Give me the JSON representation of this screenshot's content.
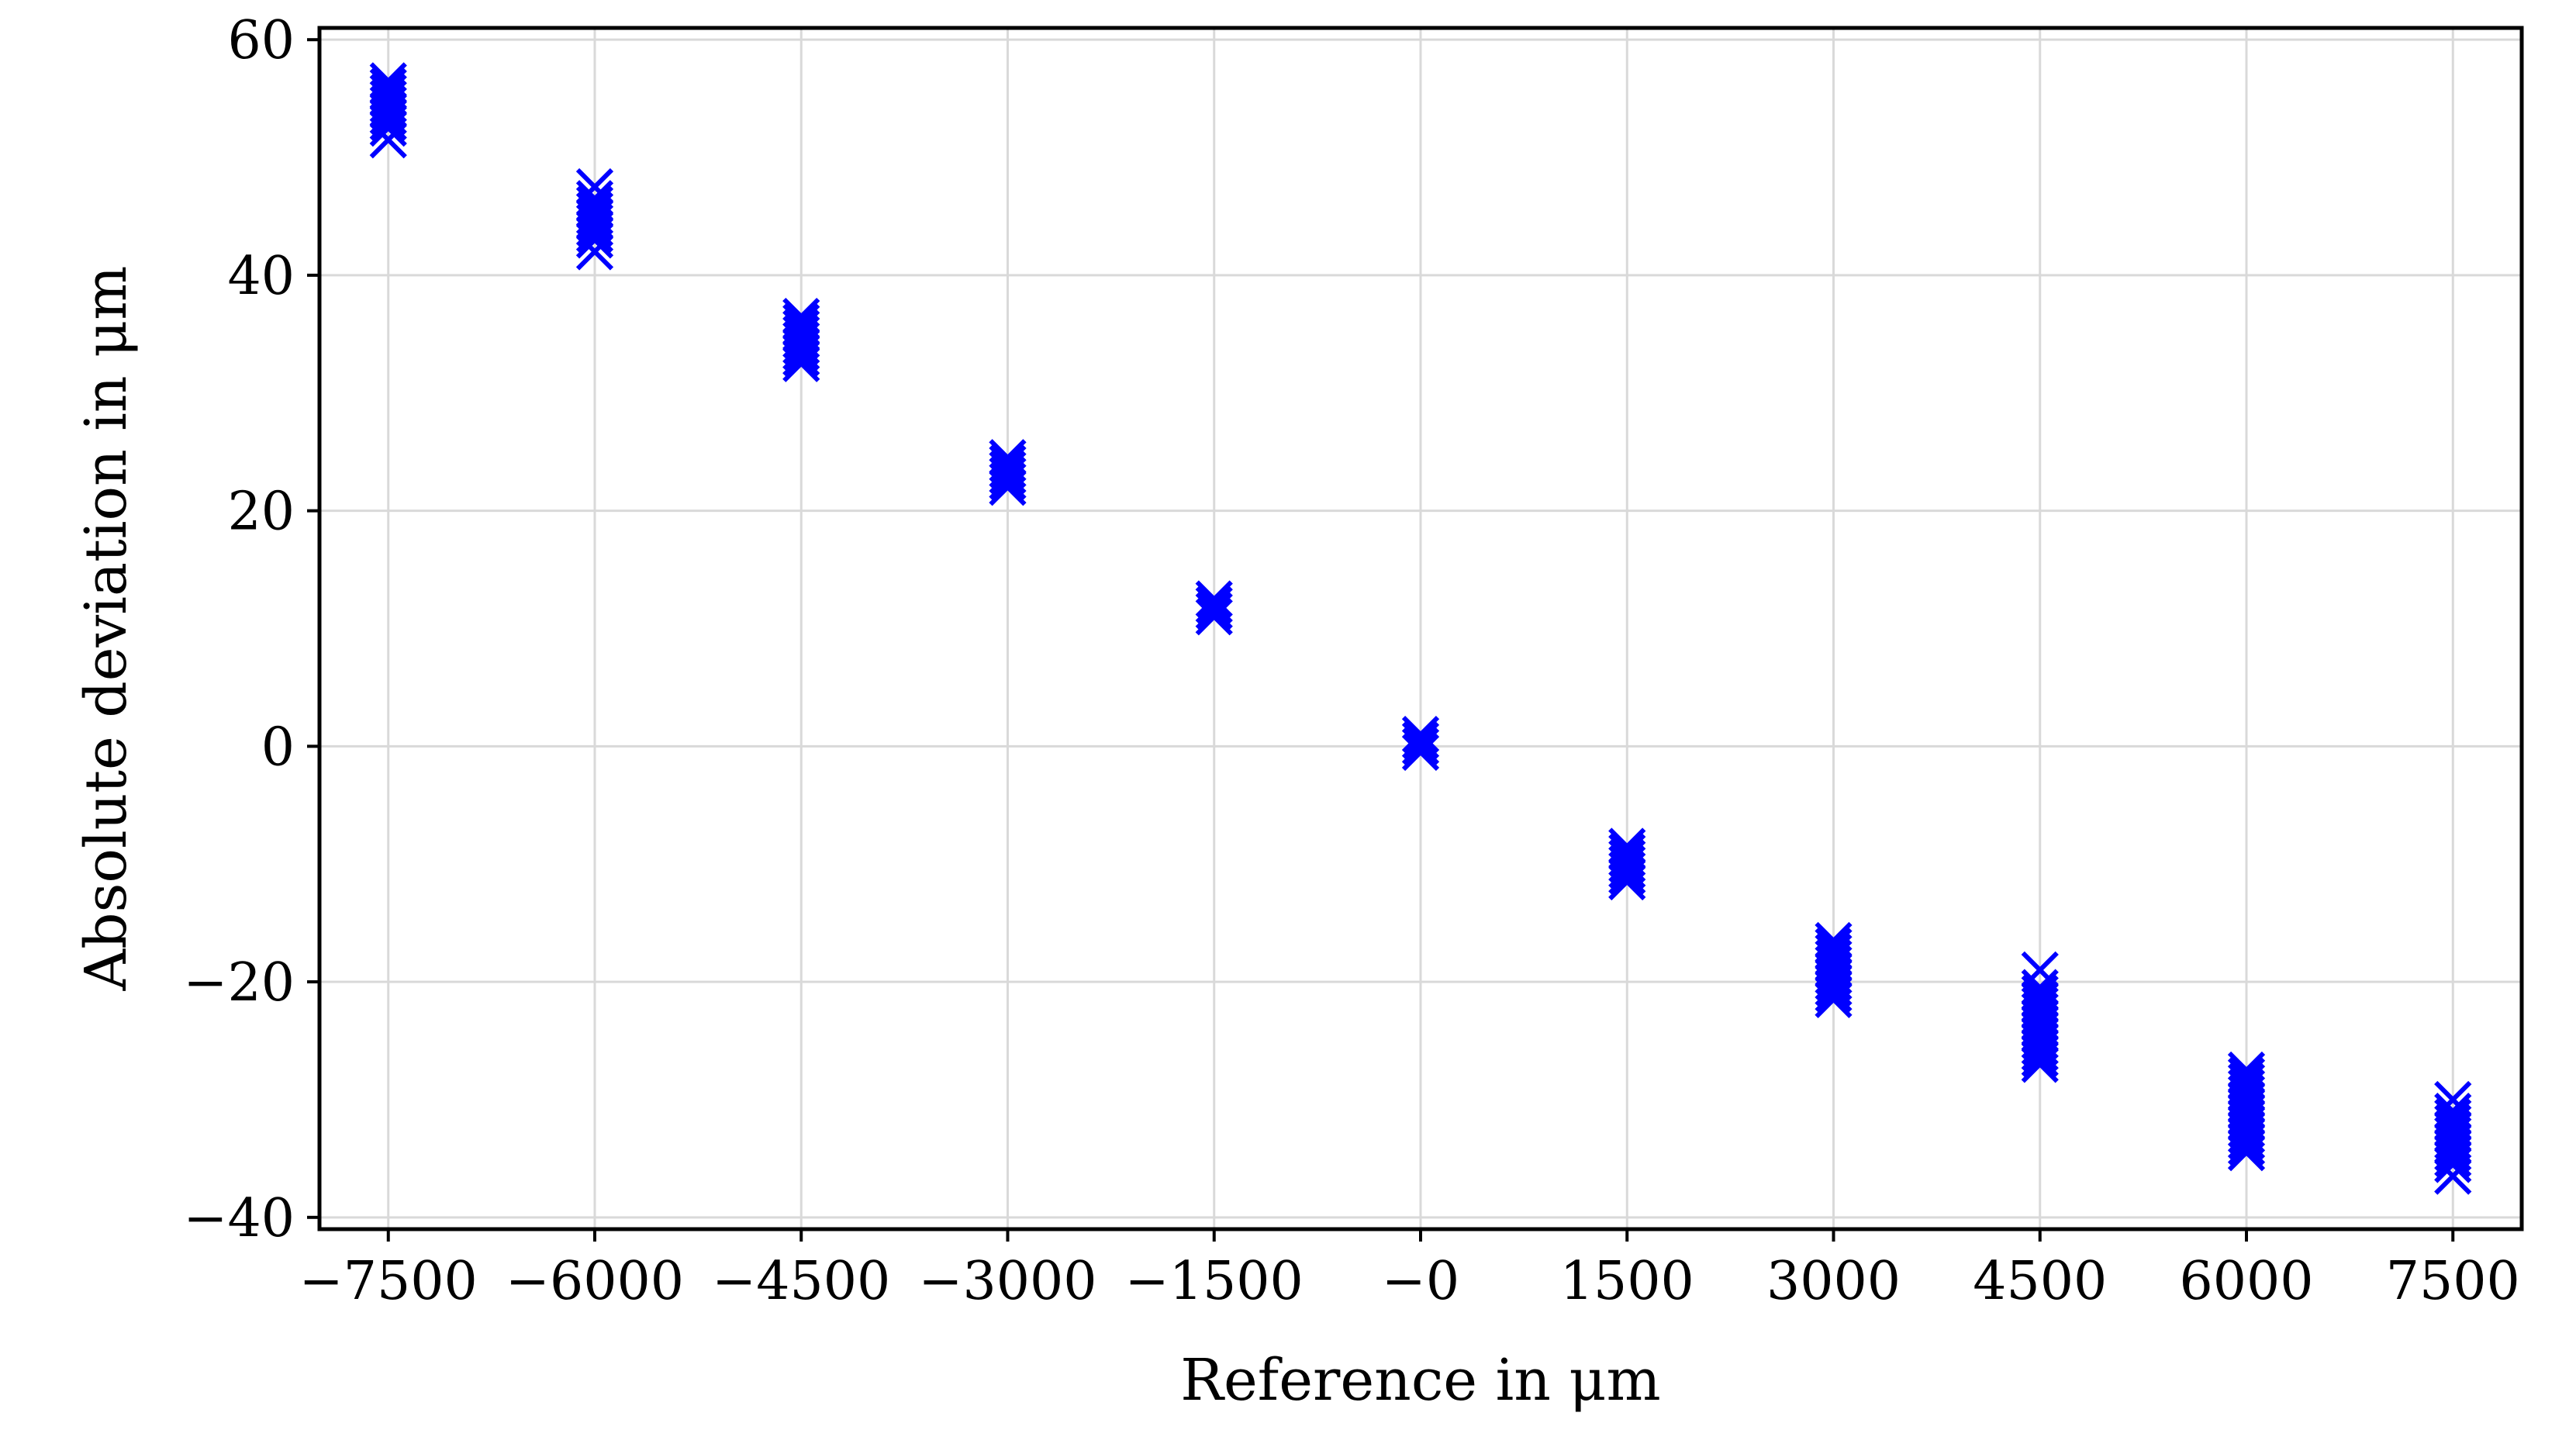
{
  "chart_data": {
    "type": "scatter",
    "xlabel": "Reference in μm",
    "ylabel": "Absolute deviation in μm",
    "xlim": [
      -8000,
      8000
    ],
    "ylim": [
      -41,
      61
    ],
    "x_ticks": [
      -7500,
      -6000,
      -4500,
      -3000,
      -1500,
      0,
      1500,
      3000,
      4500,
      6000,
      7500
    ],
    "x_tick_labels": [
      "−7500",
      "−6000",
      "−4500",
      "−3000",
      "−1500",
      "−0",
      "1500",
      "3000",
      "4500",
      "6000",
      "7500"
    ],
    "y_ticks": [
      -40,
      -20,
      0,
      20,
      40,
      60
    ],
    "y_tick_labels": [
      "−40",
      "−20",
      "0",
      "20",
      "40",
      "60"
    ],
    "grid": true,
    "marker": "x",
    "color": "#0000ff",
    "series": [
      {
        "points": [
          {
            "x": -7500,
            "y": [
              51.5,
              52.5,
              53.0,
              53.5,
              54.0,
              54.5,
              55.0,
              55.5,
              56.0,
              56.5
            ]
          },
          {
            "x": -6000,
            "y": [
              42.0,
              43.0,
              43.5,
              44.0,
              44.5,
              45.0,
              45.5,
              46.0,
              46.5,
              47.5
            ]
          },
          {
            "x": -4500,
            "y": [
              32.5,
              33.0,
              33.5,
              34.0,
              34.5,
              35.0,
              35.5,
              36.0,
              36.5
            ]
          },
          {
            "x": -3000,
            "y": [
              22.0,
              22.5,
              23.0,
              23.5,
              24.0,
              24.5
            ]
          },
          {
            "x": -1500,
            "y": [
              11.0,
              11.5,
              12.0,
              12.5
            ]
          },
          {
            "x": 0,
            "y": [
              -0.5,
              0.0,
              0.5,
              1.0
            ]
          },
          {
            "x": 1500,
            "y": [
              -11.5,
              -11.0,
              -10.5,
              -10.0,
              -9.5,
              -9.0,
              -8.5
            ]
          },
          {
            "x": 3000,
            "y": [
              -21.5,
              -21.0,
              -20.5,
              -20.0,
              -19.5,
              -19.0,
              -18.5,
              -18.0,
              -17.5,
              -17.0,
              -16.5
            ]
          },
          {
            "x": 4500,
            "y": [
              -27.0,
              -26.5,
              -26.0,
              -25.5,
              -25.0,
              -24.5,
              -24.0,
              -23.5,
              -23.0,
              -22.5,
              -22.0,
              -21.5,
              -21.0,
              -20.5,
              -19.0
            ]
          },
          {
            "x": 6000,
            "y": [
              -34.5,
              -34.0,
              -33.5,
              -33.0,
              -32.5,
              -32.0,
              -31.5,
              -31.0,
              -30.5,
              -30.0,
              -29.5,
              -29.0,
              -28.5,
              -28.0,
              -27.5
            ]
          },
          {
            "x": 7500,
            "y": [
              -36.5,
              -35.5,
              -35.0,
              -34.5,
              -34.0,
              -33.5,
              -33.0,
              -32.5,
              -32.0,
              -31.5,
              -31.0,
              -30.0
            ]
          }
        ]
      }
    ]
  }
}
